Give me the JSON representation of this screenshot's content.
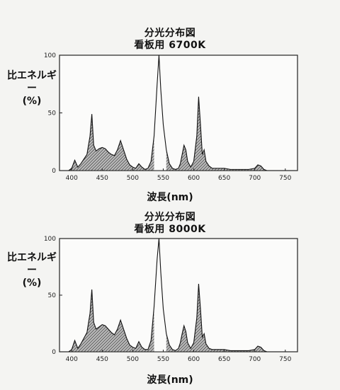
{
  "charts": [
    {
      "title": "分光分布図",
      "subtitle": "看板用 6700K",
      "ylabel_line1": "比エネルギー",
      "ylabel_line2": "(%)",
      "xlabel": "波長(nm)"
    },
    {
      "title": "分光分布図",
      "subtitle": "看板用 8000K",
      "ylabel_line1": "比エネルギー",
      "ylabel_line2": "(%)",
      "xlabel": "波長(nm)"
    }
  ],
  "chart_data": [
    {
      "type": "area",
      "title": "分光分布図 看板用 6700K",
      "xlabel": "波長(nm)",
      "ylabel": "比エネルギー(%)",
      "xlim": [
        380,
        770
      ],
      "ylim": [
        0,
        100
      ],
      "x_ticks": [
        "400",
        "450",
        "500",
        "550",
        "600",
        "650",
        "700",
        "750"
      ],
      "x_tick_values": [
        400,
        450,
        500,
        550,
        600,
        650,
        700,
        750
      ],
      "y_ticks": [
        "0",
        "50",
        "100"
      ],
      "y_tick_values": [
        0,
        50,
        100
      ],
      "series": [
        {
          "x": [
            380,
            395,
            400,
            405,
            410,
            415,
            420,
            425,
            430,
            433,
            436,
            440,
            445,
            450,
            455,
            460,
            465,
            470,
            475,
            480,
            485,
            490,
            495,
            500,
            505,
            510,
            515,
            520,
            525,
            530,
            535,
            540,
            543,
            546,
            550,
            555,
            560,
            565,
            570,
            575,
            578,
            581,
            584,
            587,
            590,
            595,
            600,
            605,
            608,
            611,
            614,
            617,
            620,
            625,
            630,
            640,
            650,
            660,
            670,
            680,
            690,
            700,
            705,
            710,
            715,
            720,
            740,
            760,
            770
          ],
          "y": [
            0,
            0,
            2,
            9,
            3,
            6,
            10,
            14,
            30,
            49,
            22,
            17,
            19,
            20,
            19,
            16,
            14,
            13,
            18,
            26,
            18,
            10,
            5,
            3,
            2,
            6,
            3,
            1,
            2,
            8,
            30,
            75,
            100,
            70,
            40,
            18,
            6,
            2,
            1,
            2,
            6,
            14,
            22,
            18,
            8,
            3,
            8,
            30,
            64,
            40,
            14,
            18,
            8,
            4,
            2,
            2,
            2,
            1,
            1,
            1,
            1,
            2,
            5,
            4,
            1,
            0,
            0,
            0,
            0
          ]
        }
      ]
    },
    {
      "type": "area",
      "title": "分光分布図 看板用 8000K",
      "xlabel": "波長(nm)",
      "ylabel": "比エネルギー(%)",
      "xlim": [
        380,
        770
      ],
      "ylim": [
        0,
        100
      ],
      "x_ticks": [
        "400",
        "450",
        "500",
        "550",
        "600",
        "650",
        "700",
        "750"
      ],
      "x_tick_values": [
        400,
        450,
        500,
        550,
        600,
        650,
        700,
        750
      ],
      "y_ticks": [
        "0",
        "50",
        "100"
      ],
      "y_tick_values": [
        0,
        50,
        100
      ],
      "series": [
        {
          "x": [
            380,
            395,
            400,
            405,
            410,
            415,
            420,
            425,
            430,
            433,
            436,
            440,
            445,
            450,
            455,
            460,
            465,
            470,
            475,
            480,
            485,
            490,
            495,
            500,
            505,
            510,
            515,
            520,
            525,
            530,
            535,
            540,
            543,
            546,
            550,
            555,
            560,
            565,
            570,
            575,
            578,
            581,
            584,
            587,
            590,
            595,
            600,
            605,
            608,
            611,
            614,
            617,
            620,
            625,
            630,
            640,
            650,
            660,
            670,
            680,
            690,
            700,
            705,
            710,
            715,
            720,
            740,
            760,
            770
          ],
          "y": [
            0,
            0,
            2,
            10,
            3,
            7,
            12,
            17,
            34,
            55,
            26,
            20,
            22,
            24,
            23,
            20,
            17,
            15,
            20,
            28,
            20,
            12,
            6,
            4,
            3,
            9,
            4,
            2,
            2,
            10,
            40,
            82,
            100,
            70,
            38,
            16,
            6,
            2,
            1,
            3,
            8,
            16,
            23,
            18,
            8,
            3,
            8,
            30,
            60,
            38,
            13,
            16,
            7,
            3,
            2,
            2,
            2,
            1,
            1,
            1,
            1,
            2,
            5,
            4,
            1,
            0,
            0,
            0,
            0
          ]
        }
      ]
    }
  ]
}
